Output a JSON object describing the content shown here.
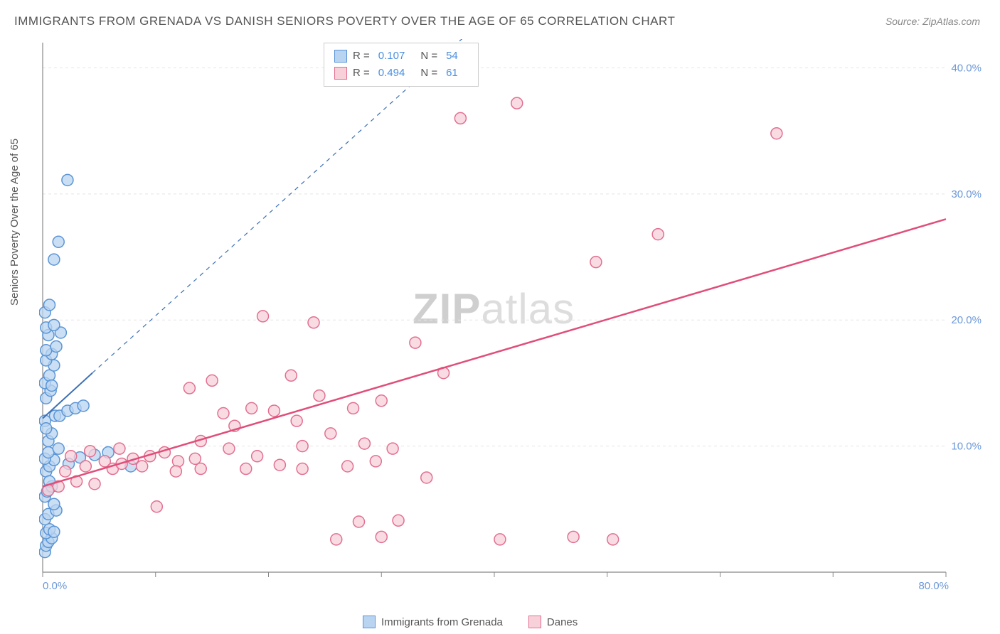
{
  "title": "IMMIGRANTS FROM GRENADA VS DANISH SENIORS POVERTY OVER THE AGE OF 65 CORRELATION CHART",
  "source": "Source: ZipAtlas.com",
  "y_axis_label": "Seniors Poverty Over the Age of 65",
  "watermark": {
    "zip": "ZIP",
    "atlas": "atlas"
  },
  "chart": {
    "type": "scatter",
    "background_color": "#ffffff",
    "grid_color": "#e5e5e5",
    "axis_line_color": "#888888",
    "tick_color": "#888888",
    "xlim": [
      0,
      80
    ],
    "ylim": [
      0,
      42
    ],
    "x_ticks": [
      0,
      10,
      20,
      30,
      40,
      50,
      60,
      70,
      80
    ],
    "x_tick_labels": [
      "0.0%",
      "",
      "",
      "",
      "",
      "",
      "",
      "",
      "80.0%"
    ],
    "y_ticks": [
      10,
      20,
      30,
      40
    ],
    "y_tick_labels": [
      "10.0%",
      "20.0%",
      "30.0%",
      "40.0%"
    ],
    "marker_radius": 8,
    "marker_stroke_width": 1.5,
    "series": [
      {
        "name": "Immigrants from Grenada",
        "fill": "#b9d4f0",
        "stroke": "#5a95d6",
        "r_value": "0.107",
        "n_value": "54",
        "trend": {
          "x1": 0,
          "y1": 12.2,
          "x2": 4.4,
          "y2": 15.8,
          "dash_x2": 38,
          "dash_y2": 43,
          "color": "#3b6fb5",
          "width": 2
        },
        "points": [
          [
            0.2,
            1.6
          ],
          [
            0.3,
            2.1
          ],
          [
            0.5,
            2.4
          ],
          [
            0.8,
            2.7
          ],
          [
            0.3,
            3.1
          ],
          [
            0.6,
            3.4
          ],
          [
            1.0,
            3.2
          ],
          [
            0.2,
            4.2
          ],
          [
            0.5,
            4.6
          ],
          [
            1.2,
            4.9
          ],
          [
            0.2,
            6.0
          ],
          [
            0.4,
            6.4
          ],
          [
            0.8,
            6.8
          ],
          [
            7.8,
            8.4
          ],
          [
            0.3,
            8.0
          ],
          [
            0.6,
            8.4
          ],
          [
            1.0,
            8.9
          ],
          [
            2.3,
            8.6
          ],
          [
            3.3,
            9.1
          ],
          [
            4.6,
            9.3
          ],
          [
            0.2,
            9.0
          ],
          [
            0.5,
            9.5
          ],
          [
            1.4,
            9.8
          ],
          [
            5.8,
            9.5
          ],
          [
            0.5,
            10.4
          ],
          [
            0.8,
            11.0
          ],
          [
            1.1,
            12.4
          ],
          [
            1.5,
            12.4
          ],
          [
            0.2,
            12.0
          ],
          [
            2.2,
            12.8
          ],
          [
            2.9,
            13.0
          ],
          [
            3.6,
            13.2
          ],
          [
            0.3,
            13.8
          ],
          [
            0.7,
            14.4
          ],
          [
            0.2,
            15.0
          ],
          [
            0.6,
            15.6
          ],
          [
            1.0,
            16.4
          ],
          [
            0.3,
            16.8
          ],
          [
            0.8,
            17.3
          ],
          [
            0.3,
            17.6
          ],
          [
            1.2,
            17.9
          ],
          [
            0.5,
            18.8
          ],
          [
            1.6,
            19.0
          ],
          [
            0.3,
            19.4
          ],
          [
            1.0,
            19.6
          ],
          [
            0.2,
            20.6
          ],
          [
            0.6,
            21.2
          ],
          [
            1.0,
            24.8
          ],
          [
            1.4,
            26.2
          ],
          [
            2.2,
            31.1
          ],
          [
            0.3,
            11.4
          ],
          [
            0.6,
            7.2
          ],
          [
            1.0,
            5.4
          ],
          [
            0.8,
            14.8
          ]
        ]
      },
      {
        "name": "Danes",
        "fill": "#f7d0d9",
        "stroke": "#e26f90",
        "r_value": "0.494",
        "n_value": "61",
        "trend": {
          "x1": 0,
          "y1": 6.8,
          "x2": 80,
          "y2": 28.0,
          "color": "#e04e7a",
          "width": 2.5
        },
        "points": [
          [
            0.5,
            6.5
          ],
          [
            1.4,
            6.8
          ],
          [
            2.0,
            8.0
          ],
          [
            3.0,
            7.2
          ],
          [
            3.8,
            8.4
          ],
          [
            4.6,
            7.0
          ],
          [
            5.5,
            8.8
          ],
          [
            6.2,
            8.2
          ],
          [
            7.0,
            8.6
          ],
          [
            8.0,
            9.0
          ],
          [
            8.8,
            8.4
          ],
          [
            9.5,
            9.2
          ],
          [
            10.1,
            5.2
          ],
          [
            10.8,
            9.5
          ],
          [
            12.0,
            8.8
          ],
          [
            13.0,
            14.6
          ],
          [
            13.5,
            9.0
          ],
          [
            14.0,
            10.4
          ],
          [
            15.0,
            15.2
          ],
          [
            16.5,
            9.8
          ],
          [
            17.0,
            11.6
          ],
          [
            18.0,
            8.2
          ],
          [
            18.5,
            13.0
          ],
          [
            19.5,
            20.3
          ],
          [
            20.5,
            12.8
          ],
          [
            21.0,
            8.5
          ],
          [
            22.0,
            15.6
          ],
          [
            23.0,
            10.0
          ],
          [
            24.0,
            19.8
          ],
          [
            24.5,
            14.0
          ],
          [
            25.5,
            11.0
          ],
          [
            26.0,
            2.6
          ],
          [
            27.0,
            8.4
          ],
          [
            27.5,
            13.0
          ],
          [
            28.0,
            4.0
          ],
          [
            28.5,
            10.2
          ],
          [
            30.0,
            2.8
          ],
          [
            31.0,
            9.8
          ],
          [
            31.5,
            4.1
          ],
          [
            33.0,
            18.2
          ],
          [
            34.0,
            7.5
          ],
          [
            35.5,
            15.8
          ],
          [
            37.0,
            36.0
          ],
          [
            40.5,
            2.6
          ],
          [
            42.0,
            37.2
          ],
          [
            47.0,
            2.8
          ],
          [
            49.0,
            24.6
          ],
          [
            50.5,
            2.6
          ],
          [
            54.5,
            26.8
          ],
          [
            65.0,
            34.8
          ],
          [
            2.5,
            9.2
          ],
          [
            4.2,
            9.6
          ],
          [
            6.8,
            9.8
          ],
          [
            11.8,
            8.0
          ],
          [
            16.0,
            12.6
          ],
          [
            19.0,
            9.2
          ],
          [
            22.5,
            12.0
          ],
          [
            29.5,
            8.8
          ],
          [
            14.0,
            8.2
          ],
          [
            23.0,
            8.2
          ],
          [
            30.0,
            13.6
          ]
        ]
      }
    ]
  },
  "legend_bottom": [
    {
      "label": "Immigrants from Grenada",
      "fill": "#b9d4f0",
      "stroke": "#5a95d6"
    },
    {
      "label": "Danes",
      "fill": "#f7d0d9",
      "stroke": "#e26f90"
    }
  ]
}
